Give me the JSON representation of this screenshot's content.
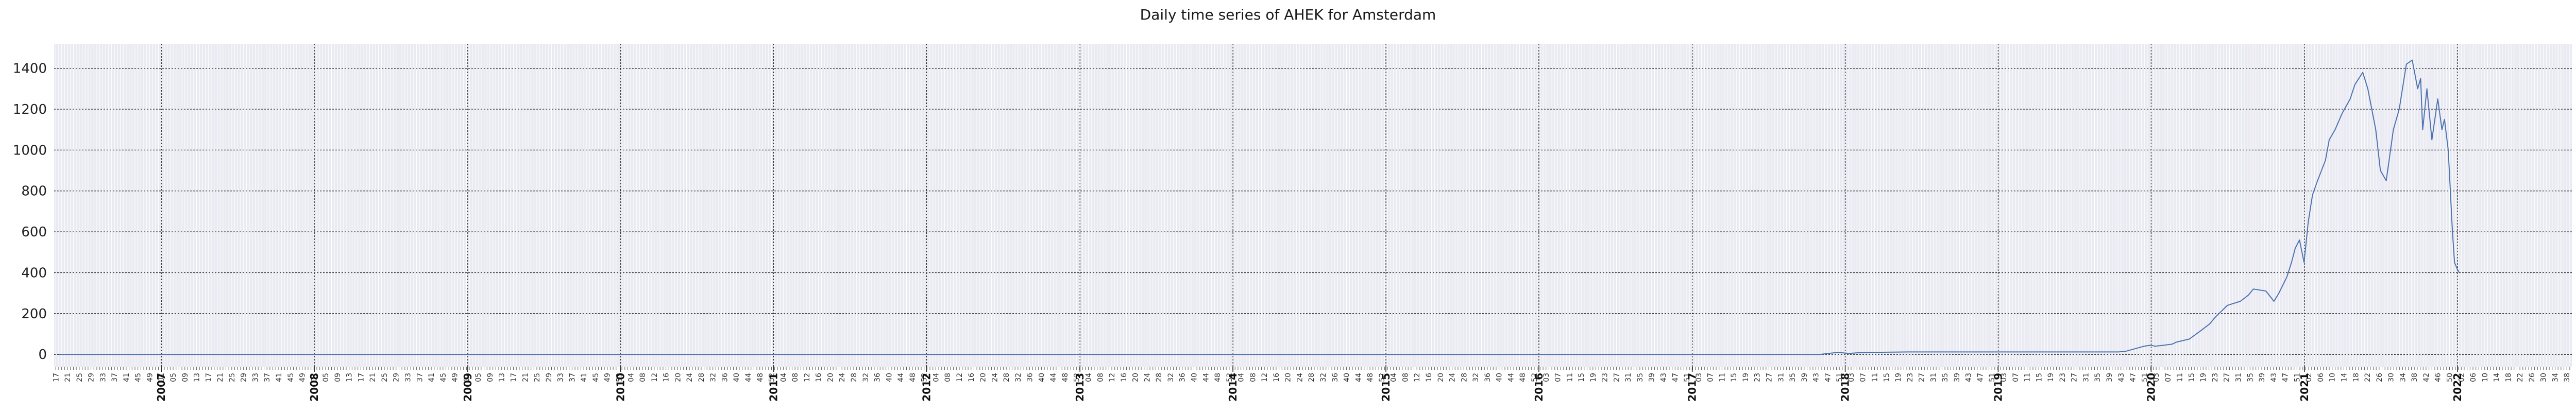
{
  "chart_data": {
    "type": "line",
    "title": "Daily time series of AHEK for Amsterdam",
    "xlabel": "",
    "ylabel": "",
    "xlim": [
      "2006-04-20",
      "2022-10-01"
    ],
    "ylim": [
      -60,
      1520
    ],
    "yticks": [
      0,
      200,
      400,
      600,
      800,
      1000,
      1200,
      1400
    ],
    "year_labels": [
      "2007",
      "2008",
      "2009",
      "2010",
      "2011",
      "2012",
      "2013",
      "2014",
      "2015",
      "2016",
      "2017",
      "2018",
      "2019",
      "2020",
      "2021",
      "2022"
    ],
    "grid": true,
    "line_color": "#4c72b0",
    "background_color": "#eaeaf2",
    "series": [
      {
        "x": [
          "2006-05-01",
          "2007-01-01",
          "2008-01-01",
          "2009-01-01",
          "2010-01-01",
          "2011-01-01",
          "2012-01-01",
          "2013-01-01",
          "2014-01-01",
          "2015-01-01",
          "2016-01-01",
          "2017-01-01",
          "2017-11-01",
          "2017-12-15",
          "2018-01-10",
          "2018-02-01",
          "2018-03-01",
          "2018-06-01",
          "2019-01-01",
          "2019-06-01",
          "2019-10-15",
          "2019-11-01",
          "2019-12-15",
          "2020-01-01",
          "2020-01-10",
          "2020-02-01",
          "2020-02-20",
          "2020-03-01",
          "2020-04-01",
          "2020-05-01",
          "2020-05-20",
          "2020-06-01",
          "2020-07-01",
          "2020-08-01",
          "2020-08-20",
          "2020-09-01",
          "2020-10-01",
          "2020-10-20",
          "2020-11-01",
          "2020-11-20",
          "2020-12-01",
          "2020-12-10",
          "2020-12-20",
          "2020-12-31",
          "2021-01-10",
          "2021-01-20",
          "2021-02-01",
          "2021-02-20",
          "2021-03-01",
          "2021-03-15",
          "2021-04-01",
          "2021-04-20",
          "2021-05-01",
          "2021-05-20",
          "2021-06-01",
          "2021-06-20",
          "2021-07-01",
          "2021-07-15",
          "2021-08-01",
          "2021-08-15",
          "2021-09-01",
          "2021-09-15",
          "2021-09-28",
          "2021-10-05",
          "2021-10-10",
          "2021-10-20",
          "2021-11-01",
          "2021-11-15",
          "2021-11-25",
          "2021-12-01",
          "2021-12-10",
          "2021-12-15",
          "2021-12-20",
          "2021-12-25",
          "2021-12-31",
          "2022-01-05"
        ],
        "y": [
          0,
          0,
          0,
          0,
          0,
          0,
          0,
          0,
          0,
          0,
          0,
          0,
          0,
          10,
          5,
          8,
          10,
          12,
          12,
          12,
          12,
          15,
          40,
          45,
          40,
          45,
          50,
          60,
          75,
          120,
          150,
          180,
          240,
          260,
          290,
          320,
          310,
          260,
          300,
          380,
          450,
          520,
          560,
          450,
          650,
          780,
          850,
          950,
          1050,
          1100,
          1180,
          1250,
          1320,
          1380,
          1300,
          1100,
          900,
          850,
          1100,
          1200,
          1420,
          1440,
          1300,
          1350,
          1100,
          1300,
          1050,
          1250,
          1100,
          1150,
          1000,
          800,
          600,
          450,
          420,
          400
        ]
      }
    ]
  }
}
